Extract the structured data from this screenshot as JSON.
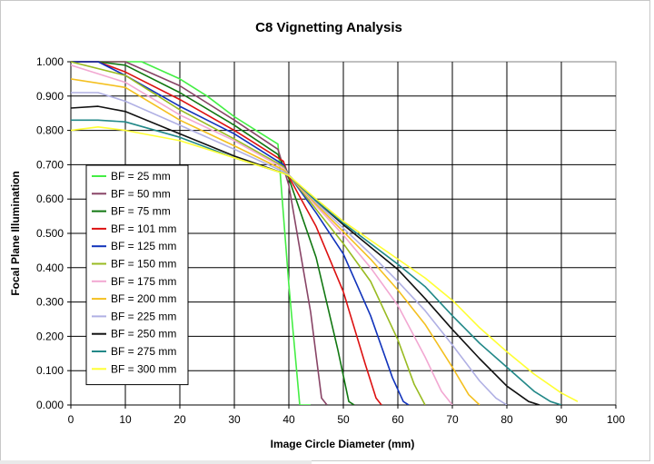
{
  "chart_data": {
    "type": "line",
    "title": "C8 Vignetting Analysis",
    "xlabel": "Image Circle Diameter (mm)",
    "ylabel": "Focal Plane Illumination",
    "xlim": [
      0,
      100
    ],
    "ylim": [
      0,
      1
    ],
    "x_ticks": [
      "0",
      "10",
      "20",
      "30",
      "40",
      "50",
      "60",
      "70",
      "80",
      "90",
      "100"
    ],
    "y_ticks": [
      "0.000",
      "0.100",
      "0.200",
      "0.300",
      "0.400",
      "0.500",
      "0.600",
      "0.700",
      "0.800",
      "0.900",
      "1.000"
    ],
    "grid": true,
    "legend_position": "left-middle",
    "series": [
      {
        "name": "BF = 25 mm",
        "color": "#44ee44",
        "x": [
          0,
          10,
          13,
          20,
          25,
          30,
          35,
          38,
          40,
          42,
          44
        ],
        "y": [
          1.0,
          1.0,
          1.0,
          0.95,
          0.9,
          0.84,
          0.79,
          0.76,
          0.35,
          0.0,
          0.0
        ]
      },
      {
        "name": "BF = 50 mm",
        "color": "#884466",
        "x": [
          0,
          10,
          20,
          30,
          38,
          40,
          44,
          46,
          47
        ],
        "y": [
          1.0,
          1.0,
          0.93,
          0.83,
          0.745,
          0.64,
          0.27,
          0.02,
          0.0
        ]
      },
      {
        "name": "BF = 75 mm",
        "color": "#117711",
        "x": [
          0,
          5,
          10,
          20,
          30,
          38,
          40,
          45,
          49,
          51,
          52
        ],
        "y": [
          1.0,
          1.0,
          0.99,
          0.91,
          0.815,
          0.73,
          0.66,
          0.43,
          0.16,
          0.01,
          0.0
        ]
      },
      {
        "name": "BF = 101 mm",
        "color": "#dd1111",
        "x": [
          0,
          5,
          10,
          20,
          30,
          39,
          40,
          45,
          50,
          54,
          56,
          57
        ],
        "y": [
          1.0,
          1.0,
          0.97,
          0.89,
          0.8,
          0.71,
          0.665,
          0.52,
          0.33,
          0.12,
          0.02,
          0.0
        ]
      },
      {
        "name": "BF = 125 mm",
        "color": "#1133bb",
        "x": [
          0,
          5,
          10,
          20,
          30,
          39,
          40,
          45,
          50,
          55,
          59,
          61,
          62
        ],
        "y": [
          1.0,
          1.0,
          0.96,
          0.87,
          0.79,
          0.7,
          0.67,
          0.56,
          0.44,
          0.26,
          0.08,
          0.01,
          0.0
        ]
      },
      {
        "name": "BF = 150 mm",
        "color": "#99bb22",
        "x": [
          0,
          10,
          20,
          30,
          39,
          40,
          45,
          50,
          55,
          60,
          63,
          65
        ],
        "y": [
          1.0,
          0.96,
          0.86,
          0.775,
          0.695,
          0.67,
          0.57,
          0.47,
          0.36,
          0.19,
          0.06,
          0.0
        ]
      },
      {
        "name": "BF = 175 mm",
        "color": "#f2a8d2",
        "x": [
          0,
          10,
          20,
          30,
          39,
          40,
          45,
          50,
          55,
          60,
          65,
          68,
          70
        ],
        "y": [
          0.99,
          0.94,
          0.845,
          0.77,
          0.69,
          0.67,
          0.58,
          0.495,
          0.4,
          0.29,
          0.14,
          0.04,
          0.0
        ]
      },
      {
        "name": "BF = 200 mm",
        "color": "#f4c020",
        "x": [
          0,
          10,
          20,
          30,
          39,
          40,
          45,
          50,
          55,
          60,
          65,
          70,
          73,
          75
        ],
        "y": [
          0.95,
          0.925,
          0.83,
          0.755,
          0.685,
          0.67,
          0.585,
          0.505,
          0.425,
          0.335,
          0.235,
          0.11,
          0.03,
          0.0
        ]
      },
      {
        "name": "BF = 225 mm",
        "color": "#b0b0e4",
        "x": [
          0,
          5,
          10,
          20,
          30,
          39,
          40,
          45,
          50,
          55,
          60,
          65,
          70,
          75,
          78,
          80
        ],
        "y": [
          0.91,
          0.91,
          0.885,
          0.815,
          0.745,
          0.68,
          0.67,
          0.59,
          0.515,
          0.44,
          0.36,
          0.275,
          0.175,
          0.07,
          0.02,
          0.0
        ]
      },
      {
        "name": "BF = 250 mm",
        "color": "#111111",
        "x": [
          0,
          5,
          10,
          20,
          30,
          39,
          40,
          45,
          50,
          55,
          60,
          65,
          70,
          75,
          80,
          84,
          86
        ],
        "y": [
          0.865,
          0.87,
          0.855,
          0.79,
          0.725,
          0.675,
          0.668,
          0.595,
          0.525,
          0.46,
          0.395,
          0.31,
          0.22,
          0.135,
          0.055,
          0.01,
          0.0
        ]
      },
      {
        "name": "BF = 275 mm",
        "color": "#228888",
        "x": [
          0,
          5,
          10,
          20,
          30,
          39,
          40,
          45,
          50,
          55,
          60,
          65,
          70,
          75,
          80,
          85,
          88,
          90
        ],
        "y": [
          0.83,
          0.83,
          0.825,
          0.78,
          0.72,
          0.675,
          0.668,
          0.595,
          0.53,
          0.47,
          0.41,
          0.345,
          0.26,
          0.18,
          0.11,
          0.04,
          0.01,
          0.0
        ]
      },
      {
        "name": "BF = 300 mm",
        "color": "#ffff33",
        "x": [
          0,
          5,
          10,
          20,
          30,
          39,
          40,
          45,
          50,
          55,
          60,
          65,
          70,
          75,
          80,
          85,
          90,
          93
        ],
        "y": [
          0.8,
          0.81,
          0.8,
          0.77,
          0.72,
          0.675,
          0.668,
          0.6,
          0.535,
          0.48,
          0.425,
          0.37,
          0.305,
          0.225,
          0.155,
          0.09,
          0.035,
          0.01
        ]
      }
    ]
  }
}
